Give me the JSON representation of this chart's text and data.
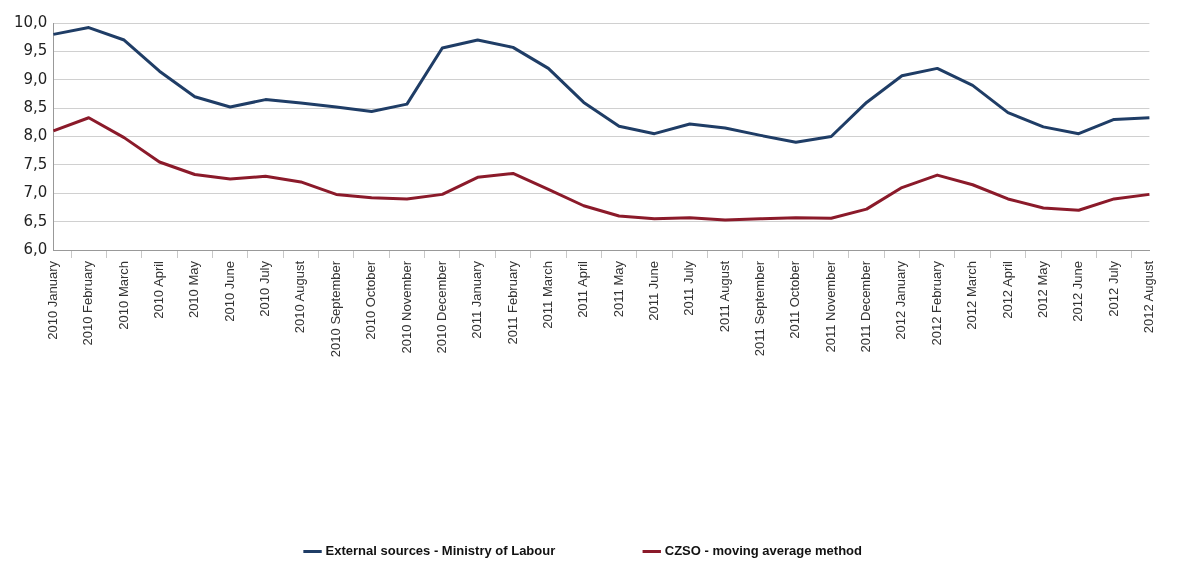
{
  "chart_data": {
    "type": "line",
    "categories": [
      "2010 January",
      "2010 February",
      "2010 March",
      "2010 April",
      "2010 May",
      "2010 June",
      "2010 July",
      "2010 August",
      "2010 September",
      "2010 October",
      "2010 November",
      "2010 December",
      "2011 January",
      "2011 February",
      "2011 March",
      "2011 April",
      "2011 May",
      "2011 June",
      "2011 July",
      "2011 August",
      "2011 September",
      "2011 October",
      "2011 November",
      "2011 December",
      "2012 January",
      "2012 February",
      "2012 March",
      "2012 April",
      "2012 May",
      "2012 June",
      "2012 July",
      "2012 August"
    ],
    "series": [
      {
        "name": "External sources - Ministry of Labour",
        "color": "#1f3d66",
        "values": [
          9.8,
          9.92,
          9.7,
          9.15,
          8.7,
          8.52,
          8.65,
          8.59,
          8.52,
          8.44,
          8.57,
          9.56,
          9.7,
          9.57,
          9.2,
          8.6,
          8.18,
          8.05,
          8.22,
          8.15,
          8.02,
          7.9,
          8.0,
          8.6,
          9.07,
          9.2,
          8.9,
          8.42,
          8.17,
          8.05,
          8.3,
          8.33
        ]
      },
      {
        "name": "CZSO - moving average method",
        "color": "#8b1a2a",
        "values": [
          8.1,
          8.33,
          7.98,
          7.55,
          7.33,
          7.25,
          7.3,
          7.2,
          6.98,
          6.92,
          6.9,
          6.98,
          7.28,
          7.35,
          7.07,
          6.78,
          6.6,
          6.55,
          6.57,
          6.53,
          6.55,
          6.57,
          6.56,
          6.72,
          7.1,
          7.32,
          7.15,
          6.9,
          6.74,
          6.7,
          6.9,
          6.98
        ]
      }
    ],
    "ylim": [
      6,
      10
    ],
    "yticks": [
      {
        "value": 6,
        "label": "6,0"
      },
      {
        "value": 6.5,
        "label": "6,5"
      },
      {
        "value": 7,
        "label": "7,0"
      },
      {
        "value": 7.5,
        "label": "7,5"
      },
      {
        "value": 8,
        "label": "8,0"
      },
      {
        "value": 8.5,
        "label": "8,5"
      },
      {
        "value": 9,
        "label": "9,0"
      },
      {
        "value": 9.5,
        "label": "9,5"
      },
      {
        "value": 10,
        "label": "10,0"
      }
    ],
    "grid": "y",
    "legend": "bottom",
    "marker": "none",
    "line_style": "solid"
  }
}
